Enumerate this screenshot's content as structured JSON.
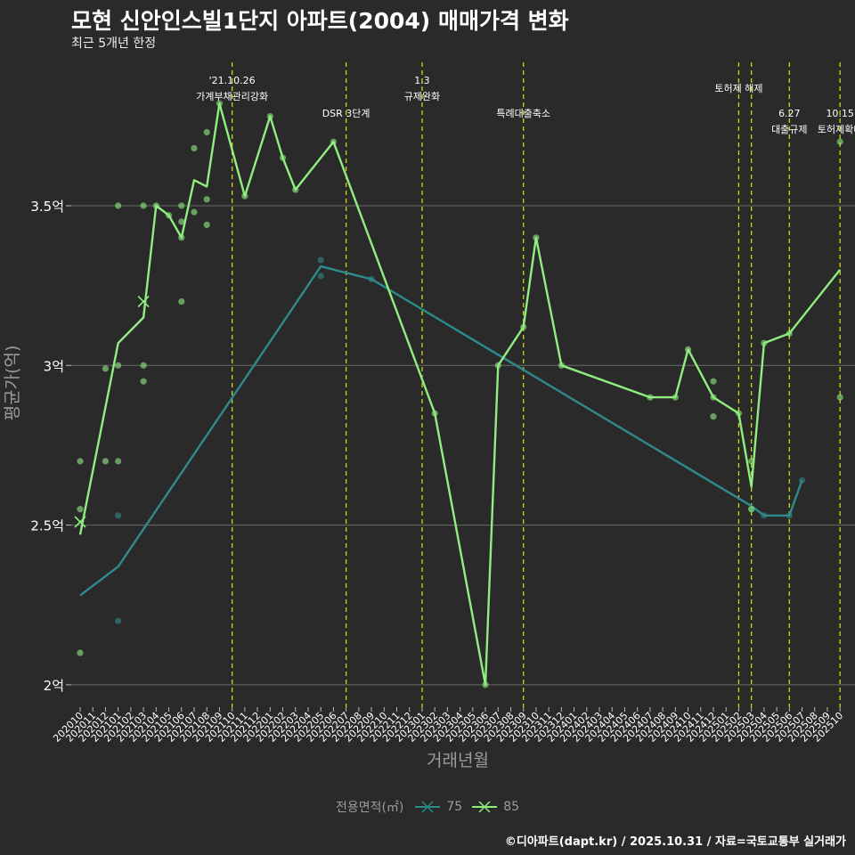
{
  "header": {
    "title": "모현 신안인스빌1단지 아파트(2004) 매매가격 변화",
    "subtitle": "최근 5개년 한정"
  },
  "footer": {
    "caption": "©디아파트(dapt.kr) / 2025.10.31 / 자료=국토교통부 실거래가"
  },
  "legend": {
    "title": "전용면적(㎡)",
    "items": [
      "75",
      "85"
    ]
  },
  "colors": {
    "background": "#2b2a2b",
    "grid": "#6b6b6b",
    "series_75": "#2e8b8b",
    "series_85": "#90ee80",
    "event_line": "#c8d816",
    "text": "#ffffff",
    "axis_title": "#9c9c9c"
  },
  "chart_data": {
    "type": "line",
    "title": "모현 신안인스빌1단지 아파트(2004) 매매가격 변화",
    "xlabel": "거래년월",
    "ylabel": "평균가(억)",
    "ylim": [
      1.93,
      3.96
    ],
    "yticks": [
      2,
      2.5,
      3,
      3.5
    ],
    "ytick_labels": [
      "2억",
      "2.5억",
      "3억",
      "3.5억"
    ],
    "categories": [
      "202010",
      "202011",
      "202012",
      "202101",
      "202102",
      "202103",
      "202104",
      "202105",
      "202106",
      "202107",
      "202108",
      "202109",
      "202110",
      "202111",
      "202112",
      "202201",
      "202202",
      "202203",
      "202204",
      "202205",
      "202206",
      "202207",
      "202208",
      "202209",
      "202210",
      "202211",
      "202212",
      "202301",
      "202302",
      "202303",
      "202304",
      "202305",
      "202306",
      "202307",
      "202308",
      "202309",
      "202310",
      "202311",
      "202312",
      "202401",
      "202402",
      "202403",
      "202404",
      "202405",
      "202406",
      "202407",
      "202408",
      "202409",
      "202410",
      "202411",
      "202412",
      "202501",
      "202502",
      "202503",
      "202504",
      "202505",
      "202506",
      "202507",
      "202508",
      "202509",
      "202510"
    ],
    "series": [
      {
        "name": "75",
        "line": [
          [
            "202010",
            2.28
          ],
          [
            "202101",
            2.37
          ],
          [
            "202205",
            3.31
          ],
          [
            "202209",
            3.27
          ],
          [
            "202503",
            2.56
          ],
          [
            "202504",
            2.53
          ],
          [
            "202506",
            2.53
          ],
          [
            "202507",
            2.64
          ]
        ],
        "points": [
          [
            "202101",
            2.53
          ],
          [
            "202101",
            2.2
          ],
          [
            "202205",
            3.33
          ],
          [
            "202205",
            3.28
          ],
          [
            "202209",
            3.27
          ],
          [
            "202503",
            2.55
          ],
          [
            "202504",
            2.53
          ],
          [
            "202506",
            2.53
          ],
          [
            "202507",
            2.64
          ]
        ]
      },
      {
        "name": "85",
        "line": [
          [
            "202010",
            2.47
          ],
          [
            "202101",
            3.07
          ],
          [
            "202103",
            3.15
          ],
          [
            "202104",
            3.5
          ],
          [
            "202105",
            3.47
          ],
          [
            "202106",
            3.4
          ],
          [
            "202107",
            3.58
          ],
          [
            "202108",
            3.56
          ],
          [
            "202109",
            3.82
          ],
          [
            "202111",
            3.53
          ],
          [
            "202201",
            3.78
          ],
          [
            "202202",
            3.65
          ],
          [
            "202203",
            3.55
          ],
          [
            "202206",
            3.7
          ],
          [
            "202302",
            2.85
          ],
          [
            "202306",
            2.0
          ],
          [
            "202307",
            3.0
          ],
          [
            "202309",
            3.12
          ],
          [
            "202310",
            3.4
          ],
          [
            "202312",
            3.0
          ],
          [
            "202407",
            2.9
          ],
          [
            "202409",
            2.9
          ],
          [
            "202410",
            3.05
          ],
          [
            "202412",
            2.9
          ],
          [
            "202502",
            2.85
          ],
          [
            "202503",
            2.62
          ],
          [
            "202504",
            3.07
          ],
          [
            "202506",
            3.1
          ],
          [
            "202510",
            3.3
          ]
        ],
        "points": [
          [
            "202010",
            2.55
          ],
          [
            "202010",
            2.7
          ],
          [
            "202010",
            2.1
          ],
          [
            "202012",
            2.99
          ],
          [
            "202012",
            2.7
          ],
          [
            "202101",
            3.5
          ],
          [
            "202101",
            3.0
          ],
          [
            "202101",
            2.7
          ],
          [
            "202103",
            3.5
          ],
          [
            "202103",
            3.0
          ],
          [
            "202103",
            2.95
          ],
          [
            "202104",
            3.5
          ],
          [
            "202105",
            3.47
          ],
          [
            "202106",
            3.5
          ],
          [
            "202106",
            3.45
          ],
          [
            "202106",
            3.4
          ],
          [
            "202106",
            3.2
          ],
          [
            "202107",
            3.68
          ],
          [
            "202107",
            3.48
          ],
          [
            "202108",
            3.73
          ],
          [
            "202108",
            3.52
          ],
          [
            "202108",
            3.44
          ],
          [
            "202109",
            3.82
          ],
          [
            "202111",
            3.53
          ],
          [
            "202201",
            3.78
          ],
          [
            "202202",
            3.65
          ],
          [
            "202203",
            3.55
          ],
          [
            "202206",
            3.7
          ],
          [
            "202302",
            2.85
          ],
          [
            "202306",
            2.0
          ],
          [
            "202307",
            3.0
          ],
          [
            "202309",
            3.12
          ],
          [
            "202310",
            3.4
          ],
          [
            "202312",
            3.0
          ],
          [
            "202407",
            2.9
          ],
          [
            "202409",
            2.9
          ],
          [
            "202410",
            3.05
          ],
          [
            "202412",
            2.95
          ],
          [
            "202412",
            2.9
          ],
          [
            "202412",
            2.84
          ],
          [
            "202502",
            2.85
          ],
          [
            "202503",
            2.7
          ],
          [
            "202503",
            2.55
          ],
          [
            "202504",
            3.07
          ],
          [
            "202506",
            3.1
          ],
          [
            "202510",
            3.7
          ],
          [
            "202510",
            2.9
          ]
        ],
        "crosses": [
          [
            "202010",
            2.51
          ],
          [
            "202103",
            3.2
          ]
        ]
      }
    ],
    "events": [
      {
        "month": "202110",
        "line1": "'21.10.26",
        "line2": "가계부채관리강화",
        "row": 0
      },
      {
        "month": "202207",
        "line1": "",
        "line2": "DSR 3단계",
        "row": 1
      },
      {
        "month": "202301",
        "line1": "1.3",
        "line2": "규제완화",
        "row": 0
      },
      {
        "month": "202309",
        "line1": "",
        "line2": "특례대출축소",
        "row": 1
      },
      {
        "month": "202502",
        "line1": "",
        "line2": "토허제 해제",
        "row": 0
      },
      {
        "month": "202503",
        "line1": "",
        "line2": "",
        "row": 0
      },
      {
        "month": "202506",
        "line1": "6.27",
        "line2": "대출규제",
        "row": 1
      },
      {
        "month": "202510",
        "line1": "10.15",
        "line2": "토허제확대",
        "row": 1
      }
    ]
  }
}
